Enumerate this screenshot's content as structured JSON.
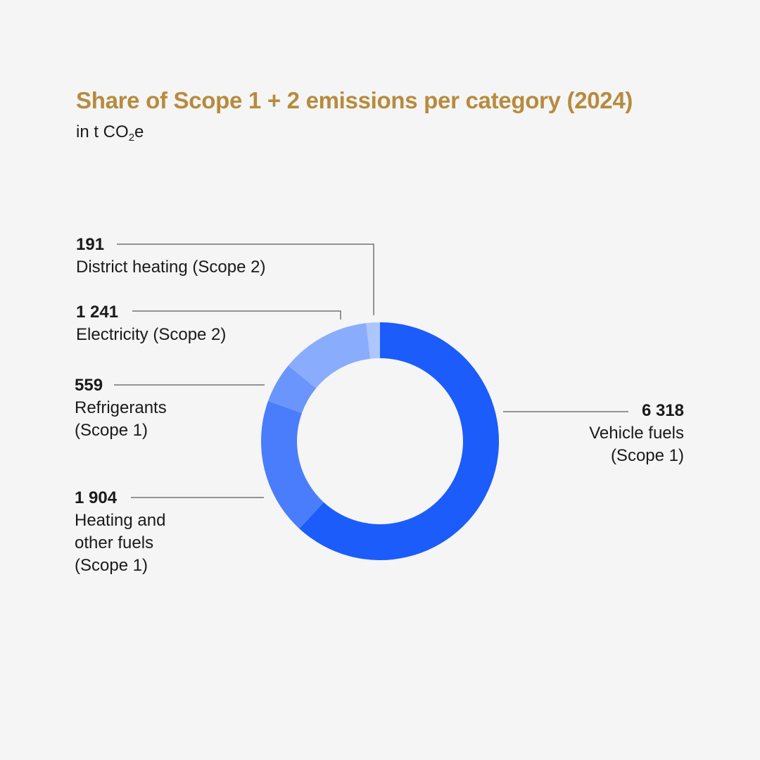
{
  "header": {
    "title": "Share of Scope 1 + 2 emissions per category (2024)",
    "subtitle_prefix": "in t CO",
    "subtitle_sub": "2",
    "subtitle_suffix": "e"
  },
  "chart_data": {
    "type": "pie",
    "variant": "donut",
    "title": "Share of Scope 1 + 2 emissions per category (2024)",
    "unit": "t CO2e",
    "order": "clockwise from top",
    "slices": [
      {
        "name": "Vehicle fuels\n(Scope 1)",
        "value": 6318,
        "value_label": "6 318",
        "color": "#1b5cfb"
      },
      {
        "name": "Heating and\nother fuels\n(Scope 1)",
        "value": 1904,
        "value_label": "1 904",
        "color": "#4a7dfc"
      },
      {
        "name": "Refrigerants\n(Scope 1)",
        "value": 559,
        "value_label": "559",
        "color": "#6a95fd"
      },
      {
        "name": "Electricity (Scope 2)",
        "value": 1241,
        "value_label": "1 241",
        "color": "#8aacfd"
      },
      {
        "name": "District heating (Scope 2)",
        "value": 191,
        "value_label": "191",
        "color": "#aec6fe"
      }
    ]
  }
}
